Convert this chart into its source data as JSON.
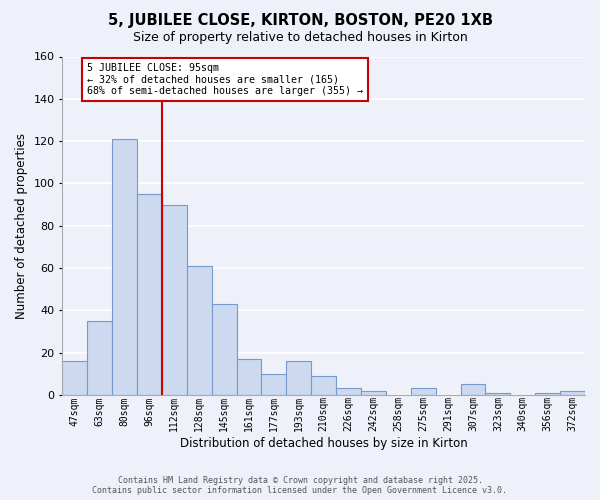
{
  "title": "5, JUBILEE CLOSE, KIRTON, BOSTON, PE20 1XB",
  "subtitle": "Size of property relative to detached houses in Kirton",
  "xlabel": "Distribution of detached houses by size in Kirton",
  "ylabel": "Number of detached properties",
  "bar_color": "#ccd9ee",
  "bar_edge_color": "#7799cc",
  "background_color": "#eef1f9",
  "grid_color": "#ffffff",
  "categories": [
    "47sqm",
    "63sqm",
    "80sqm",
    "96sqm",
    "112sqm",
    "128sqm",
    "145sqm",
    "161sqm",
    "177sqm",
    "193sqm",
    "210sqm",
    "226sqm",
    "242sqm",
    "258sqm",
    "275sqm",
    "291sqm",
    "307sqm",
    "323sqm",
    "340sqm",
    "356sqm",
    "372sqm"
  ],
  "values": [
    16,
    35,
    121,
    95,
    90,
    61,
    43,
    17,
    10,
    16,
    9,
    3,
    2,
    0,
    3,
    0,
    5,
    1,
    0,
    1,
    2
  ],
  "property_line_x": 3.5,
  "property_line_color": "#cc0000",
  "annotation_title": "5 JUBILEE CLOSE: 95sqm",
  "annotation_line1": "← 32% of detached houses are smaller (165)",
  "annotation_line2": "68% of semi-detached houses are larger (355) →",
  "annotation_box_color": "#ffffff",
  "annotation_box_edge": "#cc0000",
  "ylim": [
    0,
    160
  ],
  "yticks": [
    0,
    20,
    40,
    60,
    80,
    100,
    120,
    140,
    160
  ],
  "footer_line1": "Contains HM Land Registry data © Crown copyright and database right 2025.",
  "footer_line2": "Contains public sector information licensed under the Open Government Licence v3.0."
}
